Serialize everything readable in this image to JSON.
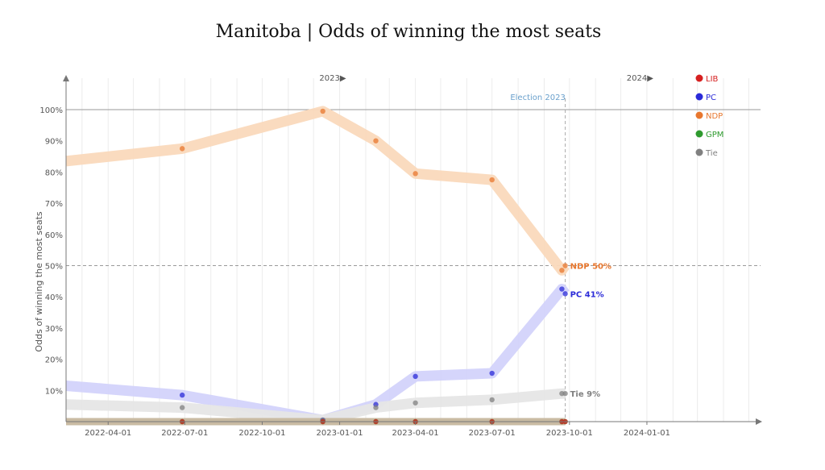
{
  "chart_data": {
    "type": "line",
    "title": "Manitoba | Odds of winning the most seats",
    "ylabel": "Odds of winning the most seats",
    "xlabel": "",
    "ylim": [
      0,
      100
    ],
    "xlim": [
      "2022-02-10",
      "2024-05-15"
    ],
    "y_ticks": [
      {
        "value": 10,
        "label": "10%"
      },
      {
        "value": 20,
        "label": "20%"
      },
      {
        "value": 30,
        "label": "30%"
      },
      {
        "value": 40,
        "label": "40%"
      },
      {
        "value": 50,
        "label": "50%"
      },
      {
        "value": 60,
        "label": "60%"
      },
      {
        "value": 70,
        "label": "70%"
      },
      {
        "value": 80,
        "label": "80%"
      },
      {
        "value": 90,
        "label": "90%"
      },
      {
        "value": 100,
        "label": "100%"
      }
    ],
    "x_ticks": [
      "2022-04-01",
      "2022-07-01",
      "2022-10-01",
      "2023-01-01",
      "2023-04-01",
      "2023-07-01",
      "2023-10-01",
      "2024-01-01"
    ],
    "year_markers": [
      {
        "date": "2023-01-01",
        "label": "2023▶"
      },
      {
        "date": "2024-01-01",
        "label": "2024▶"
      }
    ],
    "annotations": [
      {
        "date": "2023-09-26",
        "label": "Election 2023",
        "color": "#6aa0cc"
      }
    ],
    "reference_line": 50,
    "grid": true,
    "legend_position": "top-right",
    "series": [
      {
        "name": "NDP",
        "color": "#e8772e",
        "band_color": "#fad9bc",
        "points": [
          {
            "x": "2022-02-10",
            "y": 83.5
          },
          {
            "x": "2022-06-28",
            "y": 87.5
          },
          {
            "x": "2022-12-12",
            "y": 99.5
          },
          {
            "x": "2023-02-13",
            "y": 90
          },
          {
            "x": "2023-04-01",
            "y": 79.5
          },
          {
            "x": "2023-07-01",
            "y": 77.5
          },
          {
            "x": "2023-09-22",
            "y": 48.5
          },
          {
            "x": "2023-09-26",
            "y": 50
          }
        ],
        "end_label": "NDP 50%"
      },
      {
        "name": "PC",
        "color": "#2a2ad8",
        "band_color": "#d3d3fb",
        "points": [
          {
            "x": "2022-02-10",
            "y": 11.5
          },
          {
            "x": "2022-06-28",
            "y": 8.5
          },
          {
            "x": "2022-12-12",
            "y": 0.5
          },
          {
            "x": "2023-02-13",
            "y": 5.5
          },
          {
            "x": "2023-04-01",
            "y": 14.5
          },
          {
            "x": "2023-07-01",
            "y": 15.5
          },
          {
            "x": "2023-09-22",
            "y": 42.5
          },
          {
            "x": "2023-09-26",
            "y": 41
          }
        ],
        "end_label": "PC 41%"
      },
      {
        "name": "Tie",
        "color": "#808080",
        "band_color": "#e6e6e6",
        "points": [
          {
            "x": "2022-02-10",
            "y": 5.5
          },
          {
            "x": "2022-06-28",
            "y": 4.5
          },
          {
            "x": "2022-12-12",
            "y": 0.5
          },
          {
            "x": "2023-02-13",
            "y": 4.5
          },
          {
            "x": "2023-04-01",
            "y": 6
          },
          {
            "x": "2023-07-01",
            "y": 7
          },
          {
            "x": "2023-09-22",
            "y": 9
          },
          {
            "x": "2023-09-26",
            "y": 9
          }
        ],
        "end_label": "Tie 9%"
      },
      {
        "name": "GPM",
        "color": "#2e9a2e",
        "band_color": "#d8ead8",
        "points": [
          {
            "x": "2022-02-10",
            "y": 0
          },
          {
            "x": "2022-06-28",
            "y": 0
          },
          {
            "x": "2022-12-12",
            "y": 0
          },
          {
            "x": "2023-02-13",
            "y": 0
          },
          {
            "x": "2023-04-01",
            "y": 0
          },
          {
            "x": "2023-07-01",
            "y": 0
          },
          {
            "x": "2023-09-22",
            "y": 0
          },
          {
            "x": "2023-09-26",
            "y": 0
          }
        ]
      },
      {
        "name": "LIB",
        "color": "#d62020",
        "band_color": "#c8b8a0",
        "points": [
          {
            "x": "2022-02-10",
            "y": 0
          },
          {
            "x": "2022-06-28",
            "y": 0
          },
          {
            "x": "2022-12-12",
            "y": 0
          },
          {
            "x": "2023-02-13",
            "y": 0
          },
          {
            "x": "2023-04-01",
            "y": 0
          },
          {
            "x": "2023-07-01",
            "y": 0
          },
          {
            "x": "2023-09-22",
            "y": 0
          },
          {
            "x": "2023-09-26",
            "y": 0
          }
        ]
      }
    ],
    "legend": [
      {
        "name": "LIB",
        "color": "#d62020"
      },
      {
        "name": "PC",
        "color": "#2a2ad8"
      },
      {
        "name": "NDP",
        "color": "#e8772e"
      },
      {
        "name": "GPM",
        "color": "#2e9a2e"
      },
      {
        "name": "Tie",
        "color": "#808080"
      }
    ]
  }
}
